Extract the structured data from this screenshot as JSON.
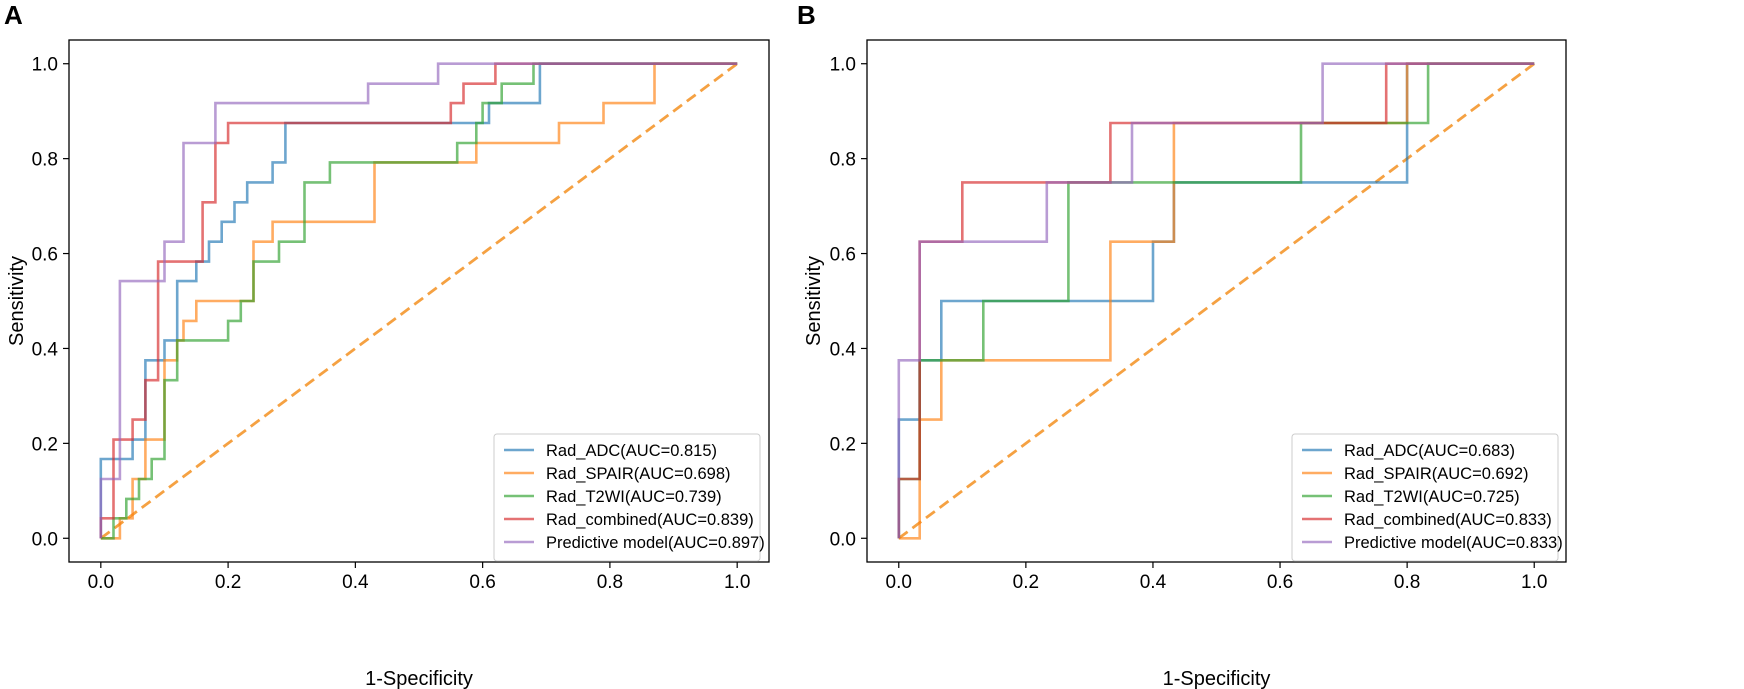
{
  "chart_data": [
    {
      "type": "line",
      "panel_label": "A",
      "xlabel": "1-Specificity",
      "ylabel": "Sensitivity",
      "xlim": [
        -0.05,
        1.05
      ],
      "ylim": [
        -0.05,
        1.05
      ],
      "xticks": [
        0.0,
        0.2,
        0.4,
        0.6,
        0.8,
        1.0
      ],
      "yticks": [
        0.0,
        0.2,
        0.4,
        0.6,
        0.8,
        1.0
      ],
      "tick_labels": [
        "0.0",
        "0.2",
        "0.4",
        "0.6",
        "0.8",
        "1.0"
      ],
      "legend_position": "lower right",
      "diagonal": {
        "color": "#f5a142",
        "style": "dashed"
      },
      "series": [
        {
          "name": "Rad_ADC(AUC=0.815)",
          "color": "#1f77b4",
          "x": [
            0,
            0,
            0.05,
            0.05,
            0.07,
            0.07,
            0.1,
            0.1,
            0.12,
            0.12,
            0.15,
            0.15,
            0.17,
            0.17,
            0.19,
            0.19,
            0.21,
            0.21,
            0.23,
            0.23,
            0.27,
            0.27,
            0.29,
            0.29,
            0.61,
            0.61,
            0.69,
            0.69,
            1.0
          ],
          "y": [
            0,
            0.167,
            0.167,
            0.208,
            0.208,
            0.375,
            0.375,
            0.417,
            0.417,
            0.542,
            0.542,
            0.583,
            0.583,
            0.625,
            0.625,
            0.667,
            0.667,
            0.708,
            0.708,
            0.75,
            0.75,
            0.792,
            0.792,
            0.875,
            0.875,
            0.917,
            0.917,
            1.0,
            1.0
          ]
        },
        {
          "name": "Rad_SPAIR(AUC=0.698)",
          "color": "#ff7f0e",
          "x": [
            0,
            0.03,
            0.03,
            0.05,
            0.05,
            0.07,
            0.07,
            0.1,
            0.1,
            0.12,
            0.12,
            0.13,
            0.13,
            0.15,
            0.15,
            0.24,
            0.24,
            0.27,
            0.27,
            0.29,
            0.29,
            0.43,
            0.43,
            0.59,
            0.59,
            0.72,
            0.72,
            0.79,
            0.79,
            0.87,
            0.87,
            1.0
          ],
          "y": [
            0,
            0,
            0.042,
            0.042,
            0.125,
            0.125,
            0.208,
            0.208,
            0.375,
            0.375,
            0.417,
            0.417,
            0.458,
            0.458,
            0.5,
            0.5,
            0.625,
            0.625,
            0.667,
            0.667,
            0.667,
            0.667,
            0.792,
            0.792,
            0.833,
            0.833,
            0.875,
            0.875,
            0.917,
            0.917,
            1.0,
            1.0
          ]
        },
        {
          "name": "Rad_T2WI(AUC=0.739)",
          "color": "#2ca02c",
          "x": [
            0,
            0.02,
            0.02,
            0.04,
            0.04,
            0.06,
            0.06,
            0.08,
            0.08,
            0.1,
            0.1,
            0.12,
            0.12,
            0.16,
            0.16,
            0.2,
            0.2,
            0.22,
            0.22,
            0.24,
            0.24,
            0.28,
            0.28,
            0.32,
            0.32,
            0.36,
            0.36,
            0.56,
            0.56,
            0.59,
            0.59,
            0.6,
            0.6,
            0.63,
            0.63,
            0.68,
            0.68,
            1.0
          ],
          "y": [
            0,
            0,
            0.042,
            0.042,
            0.083,
            0.083,
            0.125,
            0.125,
            0.167,
            0.167,
            0.333,
            0.333,
            0.417,
            0.417,
            0.417,
            0.417,
            0.458,
            0.458,
            0.5,
            0.5,
            0.583,
            0.583,
            0.625,
            0.625,
            0.75,
            0.75,
            0.792,
            0.792,
            0.833,
            0.833,
            0.875,
            0.875,
            0.917,
            0.917,
            0.958,
            0.958,
            1.0,
            1.0
          ]
        },
        {
          "name": "Rad_combined(AUC=0.839)",
          "color": "#d62728",
          "x": [
            0,
            0,
            0.02,
            0.02,
            0.05,
            0.05,
            0.07,
            0.07,
            0.09,
            0.09,
            0.11,
            0.11,
            0.16,
            0.16,
            0.18,
            0.18,
            0.2,
            0.2,
            0.55,
            0.55,
            0.57,
            0.57,
            0.62,
            0.62,
            1.0
          ],
          "y": [
            0,
            0.042,
            0.042,
            0.208,
            0.208,
            0.25,
            0.25,
            0.333,
            0.333,
            0.583,
            0.583,
            0.583,
            0.583,
            0.708,
            0.708,
            0.833,
            0.833,
            0.875,
            0.875,
            0.917,
            0.917,
            0.958,
            0.958,
            1.0,
            1.0
          ]
        },
        {
          "name": "Predictive model(AUC=0.897)",
          "color": "#9467bd",
          "x": [
            0,
            0,
            0.03,
            0.03,
            0.1,
            0.1,
            0.13,
            0.13,
            0.18,
            0.18,
            0.42,
            0.42,
            0.53,
            0.53,
            1.0
          ],
          "y": [
            0,
            0.125,
            0.125,
            0.542,
            0.542,
            0.625,
            0.625,
            0.833,
            0.833,
            0.917,
            0.917,
            0.958,
            0.958,
            1.0,
            1.0
          ]
        }
      ]
    },
    {
      "type": "line",
      "panel_label": "B",
      "xlabel": "1-Specificity",
      "ylabel": "Sensitivity",
      "xlim": [
        -0.05,
        1.05
      ],
      "ylim": [
        -0.05,
        1.05
      ],
      "xticks": [
        0.0,
        0.2,
        0.4,
        0.6,
        0.8,
        1.0
      ],
      "yticks": [
        0.0,
        0.2,
        0.4,
        0.6,
        0.8,
        1.0
      ],
      "tick_labels": [
        "0.0",
        "0.2",
        "0.4",
        "0.6",
        "0.8",
        "1.0"
      ],
      "legend_position": "lower right",
      "diagonal": {
        "color": "#f5a142",
        "style": "dashed"
      },
      "series": [
        {
          "name": "Rad_ADC(AUC=0.683)",
          "color": "#1f77b4",
          "x": [
            0,
            0,
            0.033,
            0.033,
            0.067,
            0.067,
            0.4,
            0.4,
            0.433,
            0.433,
            0.8,
            0.8,
            1.0
          ],
          "y": [
            0,
            0.25,
            0.25,
            0.375,
            0.375,
            0.5,
            0.5,
            0.625,
            0.625,
            0.75,
            0.75,
            1.0,
            1.0
          ]
        },
        {
          "name": "Rad_SPAIR(AUC=0.692)",
          "color": "#ff7f0e",
          "x": [
            0,
            0.033,
            0.033,
            0.067,
            0.067,
            0.333,
            0.333,
            0.433,
            0.433,
            0.8,
            0.8,
            1.0
          ],
          "y": [
            0,
            0,
            0.25,
            0.25,
            0.375,
            0.375,
            0.625,
            0.625,
            0.875,
            0.875,
            1.0,
            1.0
          ]
        },
        {
          "name": "Rad_T2WI(AUC=0.725)",
          "color": "#2ca02c",
          "x": [
            0,
            0,
            0.033,
            0.033,
            0.133,
            0.133,
            0.267,
            0.267,
            0.633,
            0.633,
            0.833,
            0.833,
            1.0
          ],
          "y": [
            0,
            0.125,
            0.125,
            0.375,
            0.375,
            0.5,
            0.5,
            0.75,
            0.75,
            0.875,
            0.875,
            1.0,
            1.0
          ]
        },
        {
          "name": "Rad_combined(AUC=0.833)",
          "color": "#d62728",
          "x": [
            0,
            0,
            0.033,
            0.033,
            0.1,
            0.1,
            0.333,
            0.333,
            0.767,
            0.767,
            1.0
          ],
          "y": [
            0,
            0.125,
            0.125,
            0.625,
            0.625,
            0.75,
            0.75,
            0.875,
            0.875,
            1.0,
            1.0
          ]
        },
        {
          "name": "Predictive model(AUC=0.833)",
          "color": "#9467bd",
          "x": [
            0,
            0,
            0.033,
            0.033,
            0.233,
            0.233,
            0.367,
            0.367,
            0.667,
            0.667,
            1.0
          ],
          "y": [
            0,
            0.375,
            0.375,
            0.625,
            0.625,
            0.75,
            0.75,
            0.875,
            0.875,
            1.0,
            1.0
          ]
        }
      ]
    }
  ]
}
